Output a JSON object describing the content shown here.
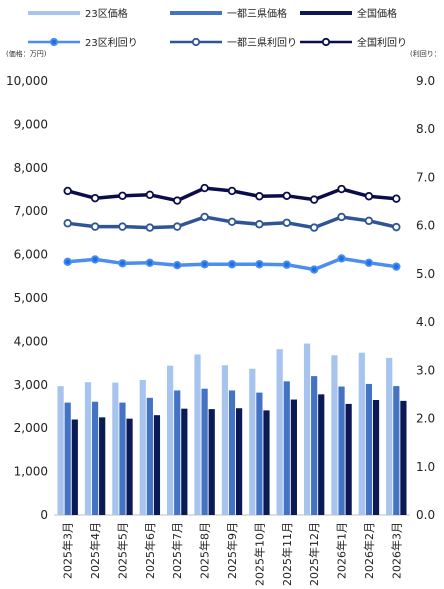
{
  "chart_data": {
    "type": "bar",
    "left_axis_unit": "(価格：万円)",
    "right_axis_unit": "(利回り：",
    "categories": [
      "2025年3月",
      "2025年4月",
      "2025年5月",
      "2025年6月",
      "2025年7月",
      "2025年8月",
      "2025年9月",
      "2025年10月",
      "2025年11月",
      "2025年12月",
      "2026年1月",
      "2026年2月",
      "2026年3月"
    ],
    "left_axis": {
      "min": 0,
      "max": 10000,
      "ticks": [
        "0",
        "1,000",
        "2,000",
        "3,000",
        "4,000",
        "5,000",
        "6,000",
        "7,000",
        "8,000",
        "9,000",
        "10,000"
      ]
    },
    "right_axis": {
      "min": 0,
      "max": 9,
      "ticks": [
        "0.0",
        "1.0",
        "2.0",
        "3.0",
        "4.0",
        "5.0",
        "6.0",
        "7.0",
        "8.0",
        "9.0"
      ]
    },
    "bar_series": [
      {
        "name": "23区価格",
        "color": "#a6c4ee",
        "values": [
          2970,
          3060,
          3050,
          3110,
          3440,
          3700,
          3450,
          3370,
          3820,
          3950,
          3680,
          3740,
          3620
        ]
      },
      {
        "name": "一都三県価格",
        "color": "#4472c4",
        "values": [
          2590,
          2610,
          2590,
          2700,
          2870,
          2910,
          2870,
          2820,
          3080,
          3200,
          2960,
          3020,
          2970
        ]
      },
      {
        "name": "全国価格",
        "color": "#0b1a55",
        "values": [
          2200,
          2250,
          2220,
          2300,
          2450,
          2440,
          2460,
          2410,
          2660,
          2780,
          2560,
          2650,
          2630
        ]
      }
    ],
    "line_series": [
      {
        "name": "23区利回り",
        "color": "#4a8ef2",
        "marker_fill": "#1f6fe0",
        "values": [
          5.25,
          5.3,
          5.22,
          5.23,
          5.18,
          5.2,
          5.2,
          5.2,
          5.19,
          5.09,
          5.32,
          5.23,
          5.15
        ]
      },
      {
        "name": "一都三県利回り",
        "color": "#2f5597",
        "marker_fill": "#ffffff",
        "values": [
          6.05,
          5.98,
          5.98,
          5.96,
          5.98,
          6.18,
          6.08,
          6.03,
          6.06,
          5.96,
          6.18,
          6.1,
          5.97
        ]
      },
      {
        "name": "全国利回り",
        "color": "#0a0d4a",
        "marker_fill": "#ffffff",
        "values": [
          6.72,
          6.57,
          6.62,
          6.64,
          6.52,
          6.78,
          6.72,
          6.61,
          6.62,
          6.54,
          6.76,
          6.61,
          6.56
        ]
      }
    ],
    "grid": false,
    "legend_position": "top"
  }
}
